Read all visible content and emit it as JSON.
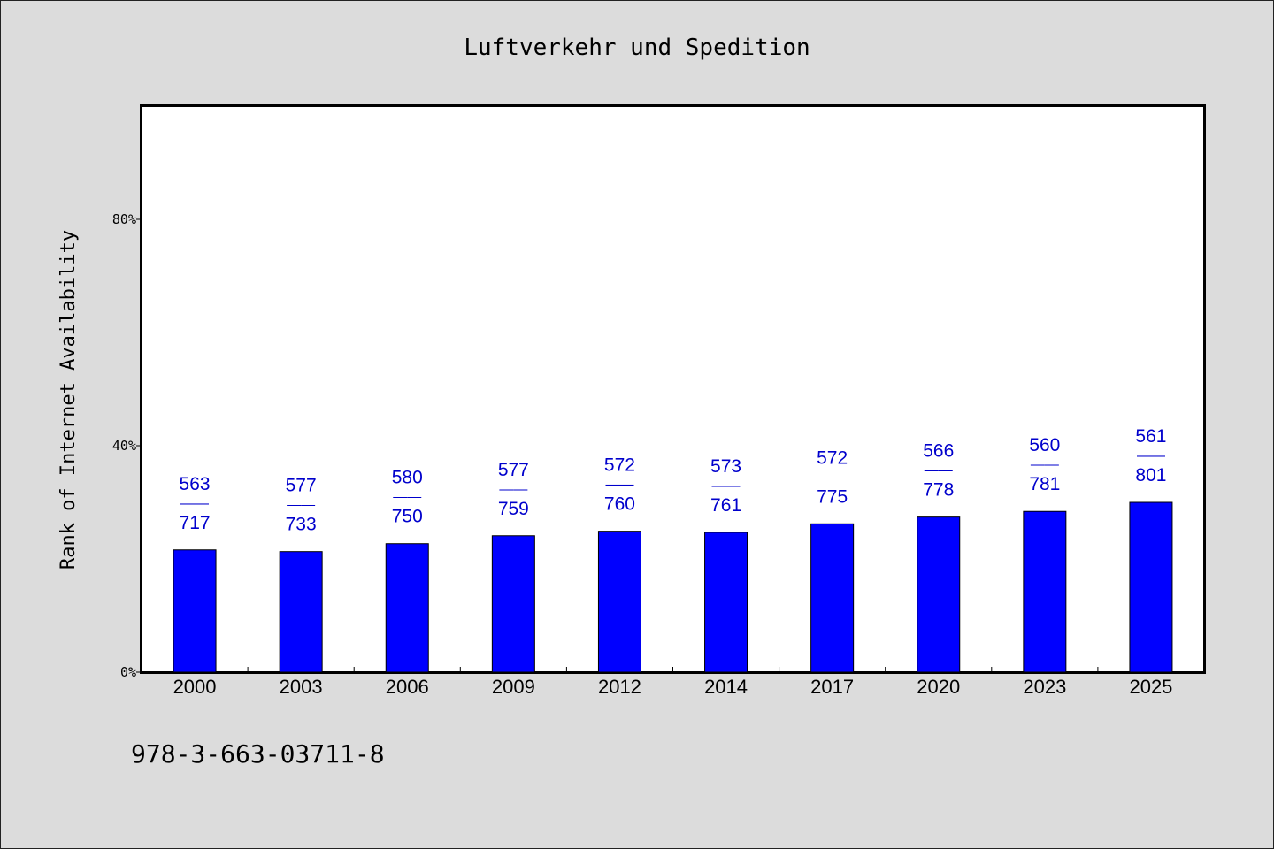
{
  "chart_data": {
    "type": "bar",
    "title": "Luftverkehr und Spedition",
    "ylabel": "Rank of Internet Availability",
    "xlabel": "",
    "ylim": [
      0,
      100
    ],
    "y_ticks": [
      {
        "value": 0,
        "label": "0%"
      },
      {
        "value": 40,
        "label": "40%"
      },
      {
        "value": 80,
        "label": "80%"
      }
    ],
    "categories": [
      "2000",
      "2003",
      "2006",
      "2009",
      "2012",
      "2014",
      "2017",
      "2020",
      "2023",
      "2025"
    ],
    "values": [
      21.6,
      21.3,
      22.7,
      24.1,
      24.9,
      24.7,
      26.2,
      27.4,
      28.4,
      30.0
    ],
    "data_labels": [
      {
        "top": "563",
        "sep": "——",
        "bottom": "717"
      },
      {
        "top": "577",
        "sep": "——",
        "bottom": "733"
      },
      {
        "top": "580",
        "sep": "——",
        "bottom": "750"
      },
      {
        "top": "577",
        "sep": "——",
        "bottom": "759"
      },
      {
        "top": "572",
        "sep": "——",
        "bottom": "760"
      },
      {
        "top": "573",
        "sep": "——",
        "bottom": "761"
      },
      {
        "top": "572",
        "sep": "——",
        "bottom": "775"
      },
      {
        "top": "566",
        "sep": "——",
        "bottom": "778"
      },
      {
        "top": "560",
        "sep": "——",
        "bottom": "781"
      },
      {
        "top": "561",
        "sep": "——",
        "bottom": "801"
      }
    ],
    "grid": false,
    "legend": "none",
    "colors": {
      "bar": "#0000ff",
      "label": "#0000cc",
      "background": "#dcdcdc",
      "plot": "#ffffff"
    }
  },
  "footnote": "978-3-663-03711-8"
}
